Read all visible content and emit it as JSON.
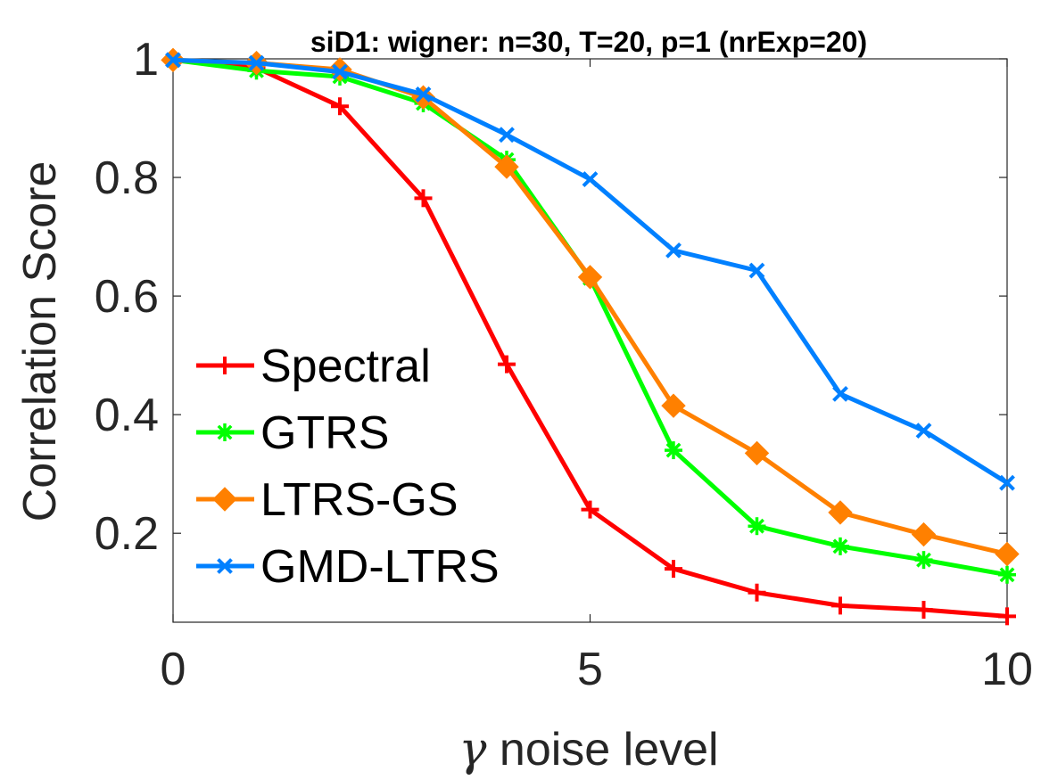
{
  "chart_data": {
    "type": "line",
    "title": "siD1: wigner: n=30, T=20, p=1 (nrExp=20)",
    "xlabel_symbol": "γ",
    "xlabel": " noise level",
    "ylabel": "Correlation Score",
    "xlim": [
      0,
      10
    ],
    "ylim": [
      0.05,
      1
    ],
    "xticks": [
      0,
      5,
      10
    ],
    "yticks": [
      0.2,
      0.4,
      0.6,
      0.8,
      1
    ],
    "ytick_labels": [
      "0.2",
      "0.4",
      "0.6",
      "0.8",
      "1"
    ],
    "grid": false,
    "legend_position": "lower-left",
    "x": [
      0,
      1,
      2,
      3,
      4,
      5,
      6,
      7,
      8,
      9,
      10
    ],
    "series": [
      {
        "name": "Spectral",
        "color": "#ff0000",
        "marker": "plus",
        "values": [
          0.998,
          0.985,
          0.92,
          0.765,
          0.485,
          0.24,
          0.14,
          0.1,
          0.078,
          0.071,
          0.06
        ]
      },
      {
        "name": "GTRS",
        "color": "#00ff00",
        "marker": "asterisk",
        "values": [
          0.998,
          0.98,
          0.97,
          0.925,
          0.83,
          0.63,
          0.34,
          0.212,
          0.178,
          0.155,
          0.13
        ]
      },
      {
        "name": "LTRS-GS",
        "color": "#ff8000",
        "marker": "diamond",
        "values": [
          0.998,
          0.993,
          0.982,
          0.935,
          0.818,
          0.632,
          0.415,
          0.335,
          0.235,
          0.198,
          0.165
        ]
      },
      {
        "name": "GMD-LTRS",
        "color": "#0080ff",
        "marker": "x",
        "values": [
          0.998,
          0.993,
          0.978,
          0.94,
          0.872,
          0.797,
          0.677,
          0.643,
          0.435,
          0.373,
          0.285
        ]
      }
    ]
  }
}
